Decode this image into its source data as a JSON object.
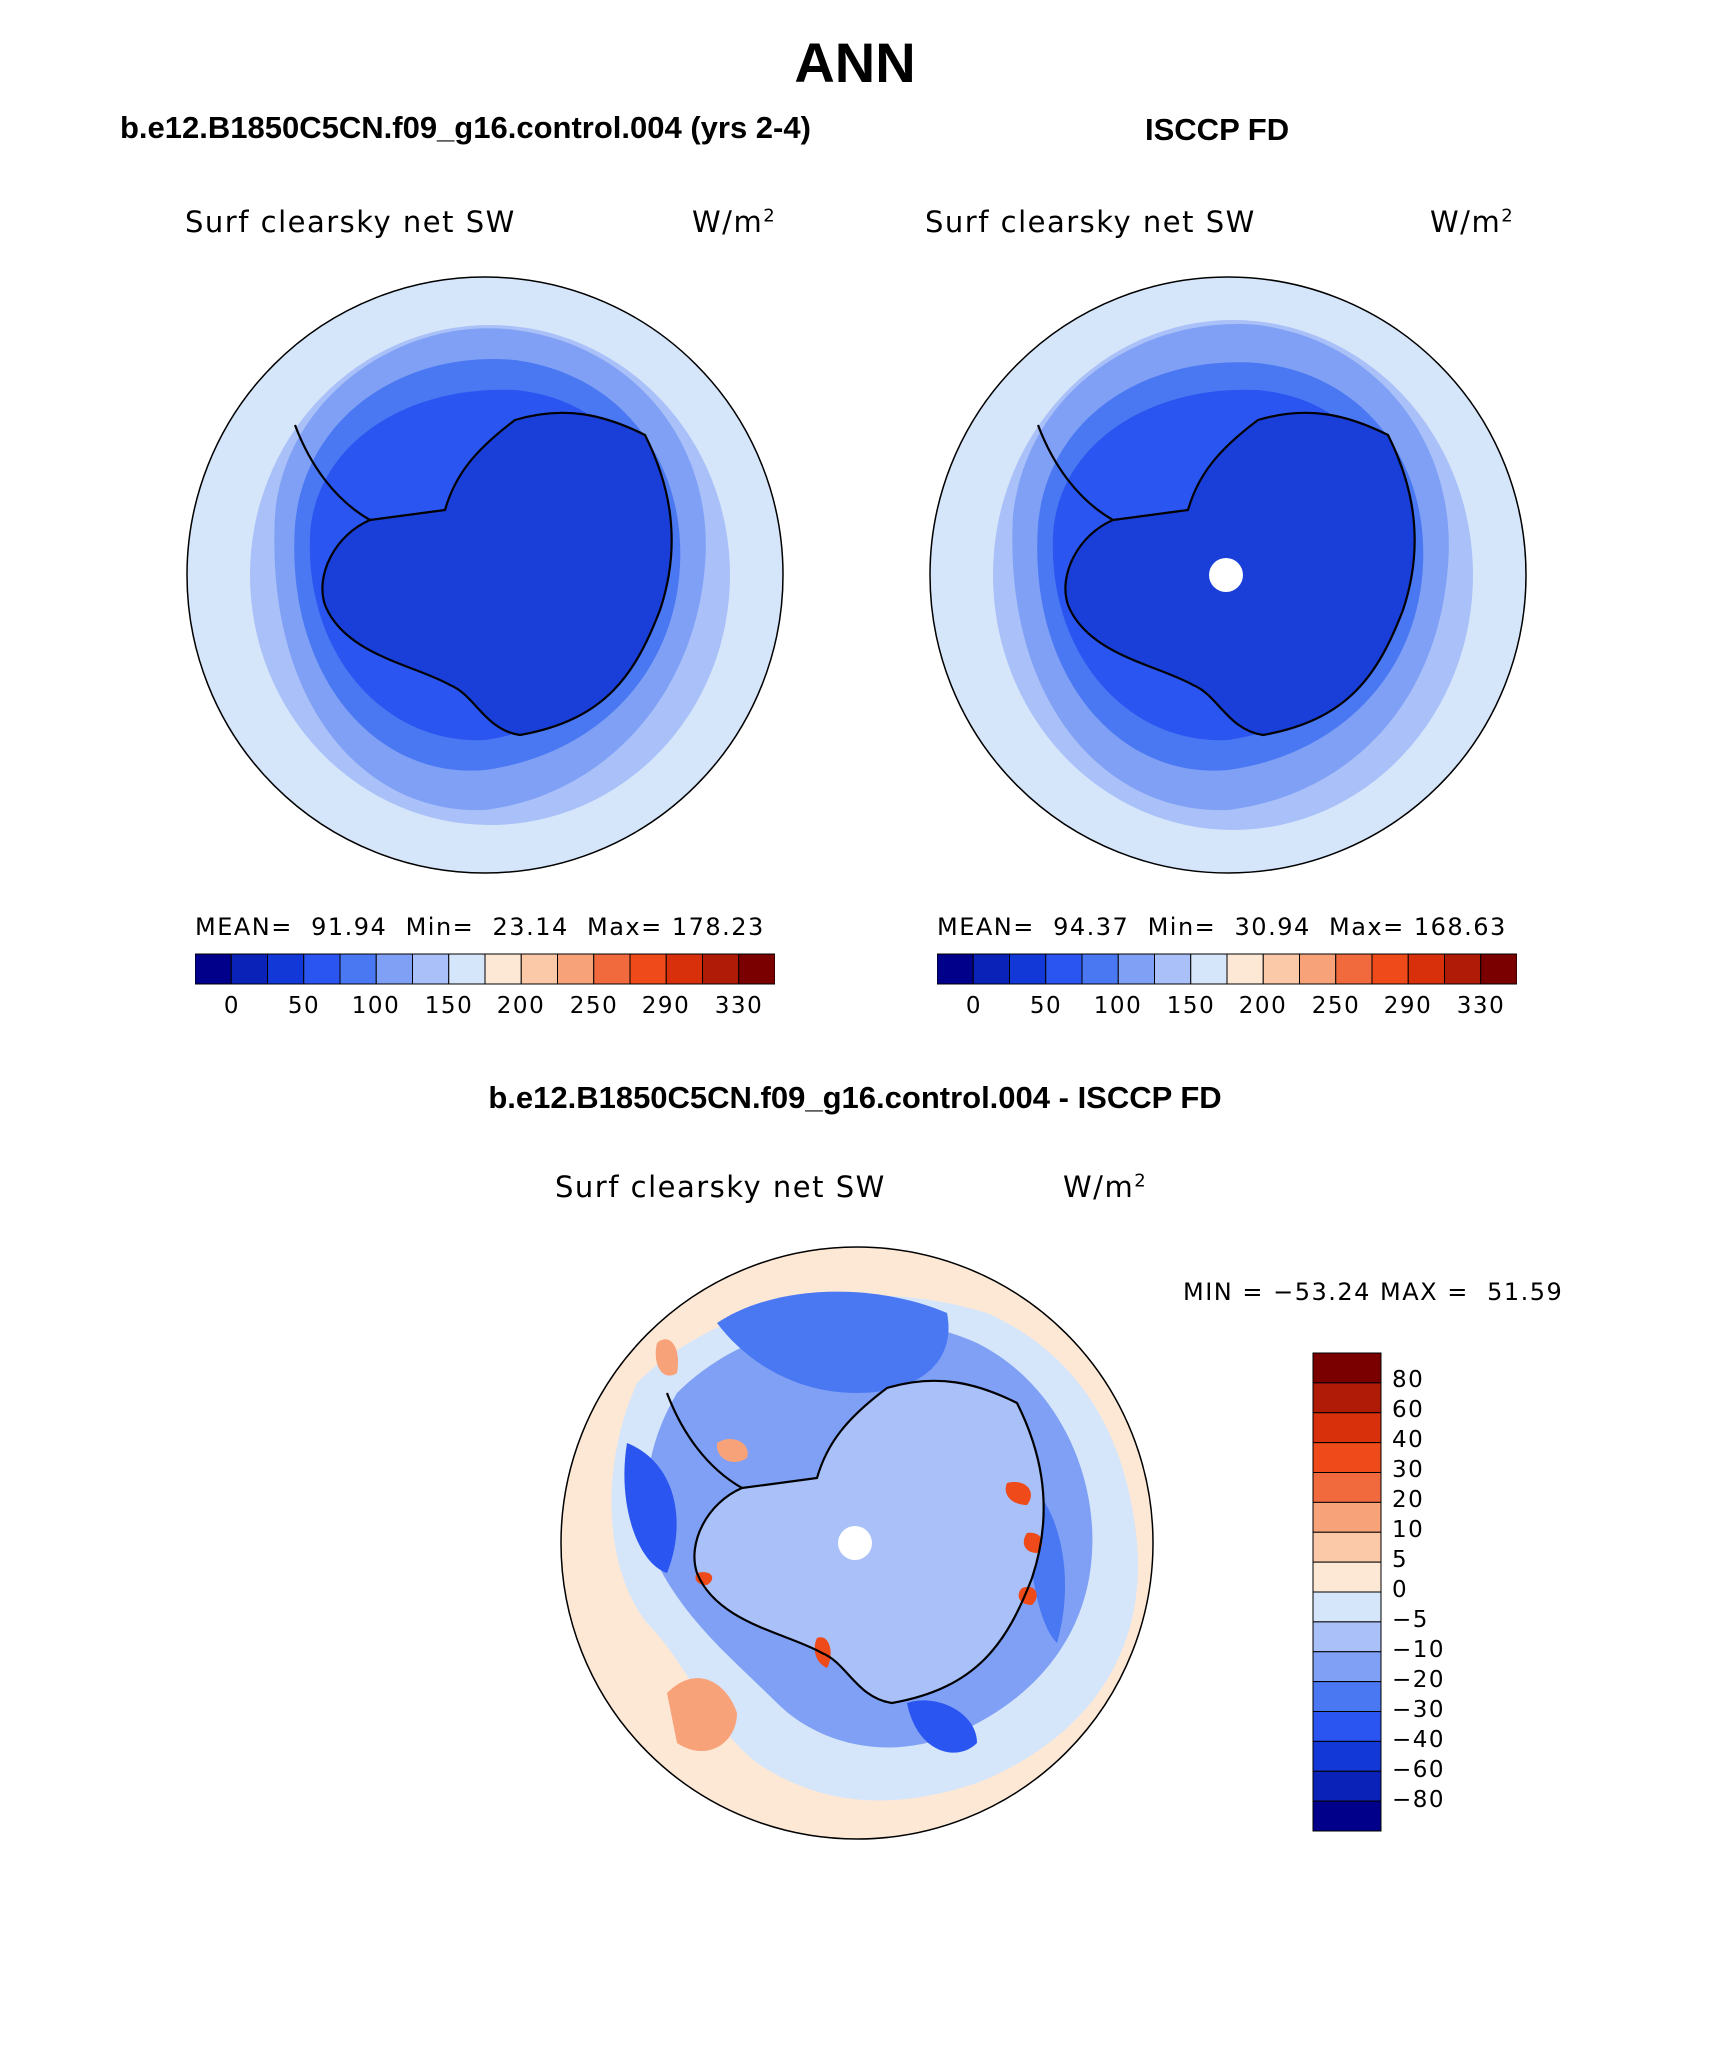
{
  "title": "ANN",
  "panels": {
    "model": {
      "header": "b.e12.B1850C5CN.f09_g16.control.004 (yrs 2-4)",
      "variable": "Surf clearsky net SW",
      "units_base": "W/m",
      "units_exp": "2",
      "stats": "MEAN=  91.94  Min=  23.14  Max= 178.23"
    },
    "obs": {
      "header": "ISCCP FD",
      "variable": "Surf clearsky net SW",
      "units_base": "W/m",
      "units_exp": "2",
      "stats": "MEAN=  94.37  Min=  30.94  Max= 168.63"
    },
    "diff": {
      "header": "b.e12.B1850C5CN.f09_g16.control.004 - ISCCP FD",
      "variable": "Surf clearsky net SW",
      "units_base": "W/m",
      "units_exp": "2",
      "stats": "MIN = −53.24 MAX =  51.59"
    }
  },
  "colorbars": {
    "main": {
      "labels": [
        "0",
        "50",
        "100",
        "150",
        "200",
        "250",
        "290",
        "330"
      ],
      "colors": [
        "#00008a",
        "#0a22b8",
        "#1238d8",
        "#2a55f0",
        "#4a78f2",
        "#7fa0f5",
        "#a9c0f8",
        "#d5e5fa",
        "#fde8d6",
        "#fbc8a8",
        "#f8a27a",
        "#f06a3e",
        "#ee4a1a",
        "#d9300c",
        "#b01b08",
        "#7a0000"
      ]
    },
    "diff": {
      "labels": [
        "80",
        "60",
        "40",
        "30",
        "20",
        "10",
        "5",
        "0",
        "−5",
        "−10",
        "−20",
        "−30",
        "−40",
        "−60",
        "−80"
      ],
      "colors": [
        "#7a0000",
        "#b01b08",
        "#d9300c",
        "#ee4a1a",
        "#f06a3e",
        "#f8a27a",
        "#fbc8a8",
        "#fde8d6",
        "#d5e5fa",
        "#a9c0f8",
        "#7fa0f5",
        "#4a78f2",
        "#2a55f0",
        "#1238d8",
        "#0a22b8",
        "#00008a"
      ]
    }
  },
  "map_colors": {
    "outer": "#d5e5fa",
    "ring1": "#a9c0f8",
    "ring2": "#7fa0f5",
    "ring3": "#4a78f2",
    "ring4": "#2a55f0",
    "ice": "#1a3fd8",
    "warm": "#fde8d6",
    "warm2": "#f8a27a",
    "hot": "#ee4a1a"
  }
}
